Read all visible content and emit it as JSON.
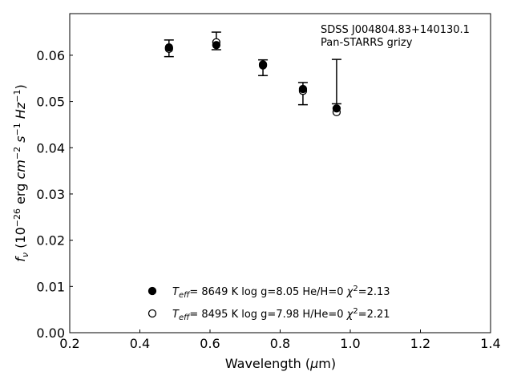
{
  "chart_data": {
    "type": "scatter",
    "title": "",
    "annotation": [
      "SDSS J004804.83+140130.1",
      "Pan-STARRS grizy"
    ],
    "xlabel": "Wavelength (μm)",
    "ylabel": "f_ν (10^-26 erg cm^-2 s^-1 Hz^-1)",
    "xlim": [
      0.2,
      1.4
    ],
    "ylim": [
      0.0,
      0.069
    ],
    "xticks": [
      0.2,
      0.4,
      0.6,
      0.8,
      1.0,
      1.2,
      1.4
    ],
    "xtick_labels": [
      "0.2",
      "0.4",
      "0.6",
      "0.8",
      "1.0",
      "1.2",
      "1.4"
    ],
    "yticks": [
      0.0,
      0.01,
      0.02,
      0.03,
      0.04,
      0.05,
      0.06
    ],
    "ytick_labels": [
      "0.00",
      "0.01",
      "0.02",
      "0.03",
      "0.04",
      "0.05",
      "0.06"
    ],
    "grid": false,
    "legend_placement": "bottom-center",
    "observed": {
      "x": [
        0.483,
        0.618,
        0.751,
        0.865,
        0.961
      ],
      "y": [
        0.0615,
        0.0631,
        0.0573,
        0.0517,
        0.0543
      ],
      "yerr": [
        0.0018,
        0.0019,
        0.0017,
        0.0024,
        0.0048
      ]
    },
    "series": [
      {
        "name": "T_eff= 8649 K log g=8.05 He/H=0 χ²=2.13",
        "marker": "filled",
        "label_parts": {
          "teff": "8649 K",
          "logg": "log g=8.05",
          "comp": "He/H=0",
          "chi": "=2.13"
        },
        "x": [
          0.483,
          0.618,
          0.751,
          0.865,
          0.961
        ],
        "y": [
          0.0617,
          0.0622,
          0.058,
          0.0527,
          0.0485
        ]
      },
      {
        "name": "T_eff= 8495 K log g=7.98 H/He=0 χ²=2.21",
        "marker": "open",
        "label_parts": {
          "teff": "8495 K",
          "logg": "log g=7.98",
          "comp": "H/He=0",
          "chi": "=2.21"
        },
        "x": [
          0.483,
          0.618,
          0.751,
          0.865,
          0.961
        ],
        "y": [
          0.0614,
          0.0628,
          0.0578,
          0.0523,
          0.0477
        ]
      }
    ]
  }
}
